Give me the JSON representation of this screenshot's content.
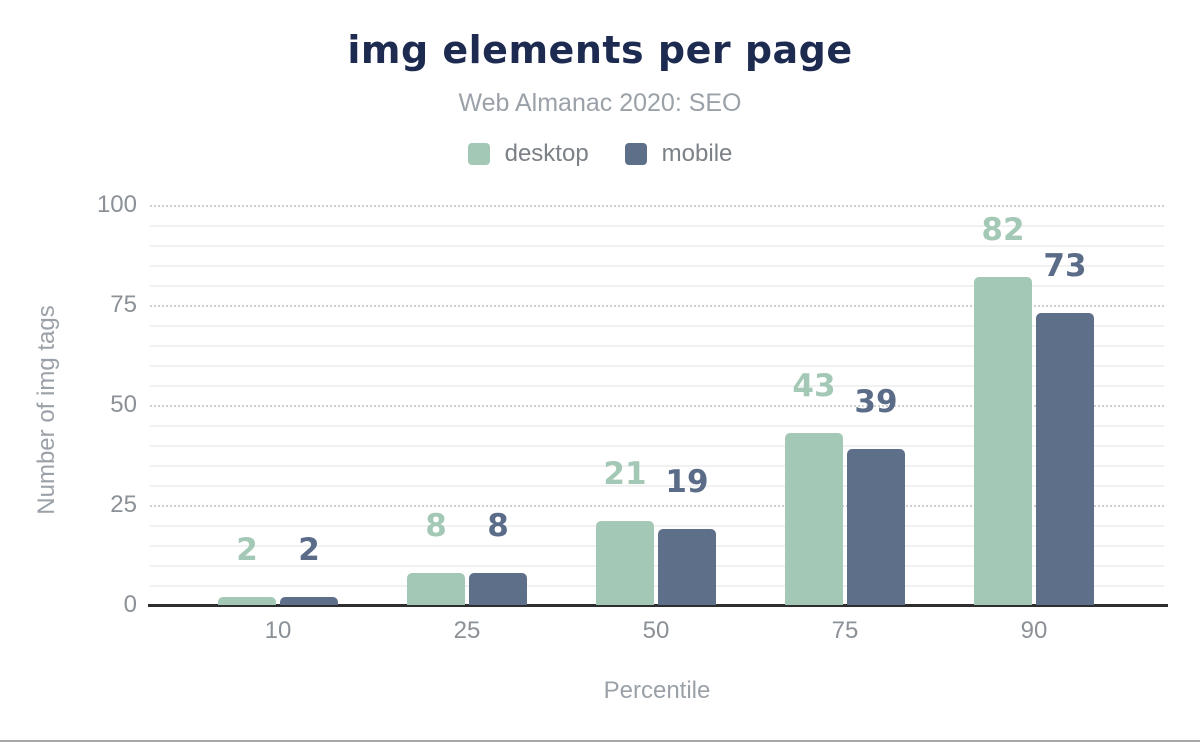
{
  "chart_data": {
    "type": "bar",
    "title": "img elements per page",
    "subtitle": "Web Almanac 2020: SEO",
    "categories": [
      "10",
      "25",
      "50",
      "75",
      "90"
    ],
    "series": [
      {
        "name": "desktop",
        "color": "#a4c8b6",
        "label_color": "#a4c8b6",
        "values": [
          2,
          8,
          21,
          43,
          82
        ]
      },
      {
        "name": "mobile",
        "color": "#5e7089",
        "label_color": "#5a6c87",
        "values": [
          2,
          8,
          19,
          39,
          73
        ]
      }
    ],
    "xlabel": "Percentile",
    "ylabel": "Number of img tags",
    "ylim": [
      0,
      100
    ],
    "yticks": [
      0,
      25,
      50,
      75,
      100
    ],
    "minor_gridline_step": 5,
    "major_gridline_step": 25,
    "grid": "on",
    "legend_position": "top"
  },
  "colors": {
    "title": "#1d2b50",
    "subtitle": "#9aa1a8",
    "axis_titles": "#9aa1a8",
    "tick_text": "#8b9197",
    "legend_text": "#7b8187",
    "baseline": "#2e2e2e",
    "major_gridline": "#cfcfcf",
    "minor_gridline": "#f1f1f1",
    "bottom_divider": "#a8a8a8",
    "background": "#ffffff"
  }
}
